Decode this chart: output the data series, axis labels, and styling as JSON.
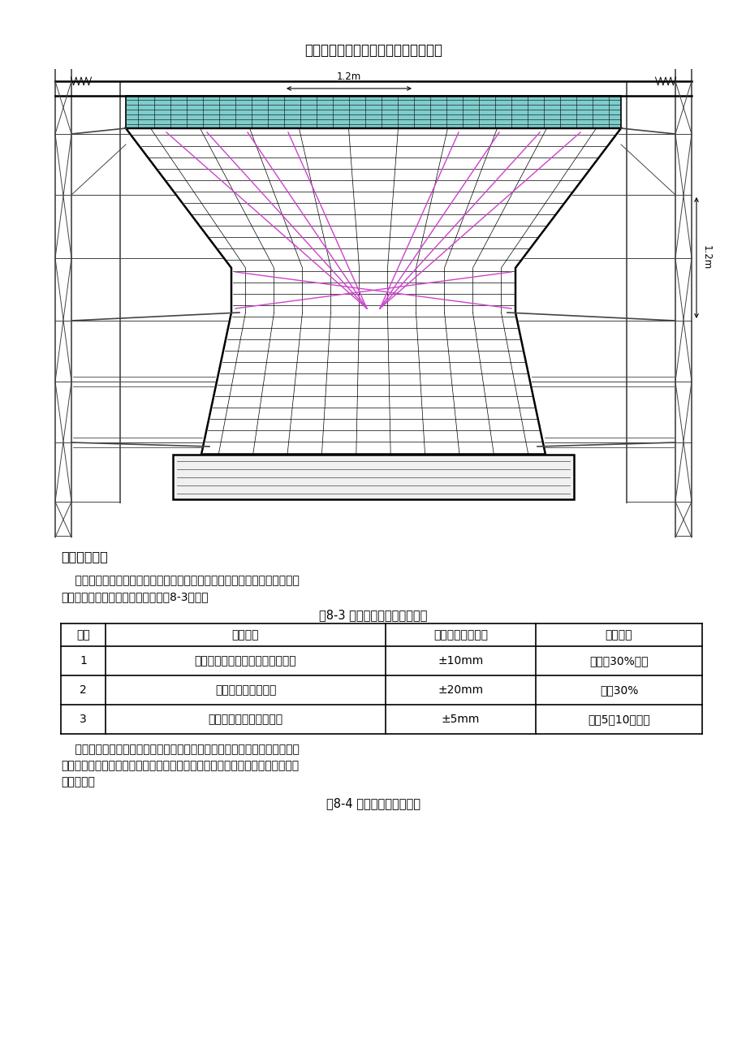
{
  "title": "墩柱施工钢管支架操作平台搭设布置图",
  "dim_top": "1.2m",
  "dim_right": "1.2m",
  "section_heading": "四、钢筋工程",
  "para1_line1": "    钢筋在钢筋棚集中加工制作，现场焊接、绑扎。钢筋绑扎的支架平台采用钢",
  "para1_line2": "管脚手架搭设。钢筋质量应符合下表8-3规定：",
  "table1_title": "表8-3 墩身钢筋安装允许偏差表",
  "table1_headers": [
    "项次",
    "检查项目",
    "规定值或允许偏差",
    "检查方法"
  ],
  "table1_rows": [
    [
      "1",
      "受力钢筋顺长度方向加工后的全长",
      "±10mm",
      "总数的30%抽查"
    ],
    [
      "2",
      "弯起钢筋各部分尺寸",
      "±20mm",
      "抽查30%"
    ],
    [
      "3",
      "箍筋、螺栓筋各部分尺寸",
      "±5mm",
      "检查5～10个间距"
    ]
  ],
  "para2_line1": "    结构主筋接头采用闪光对焊连接，主筋与箍筋之间采用扎丝进行绑扎。绑扎",
  "para2_line2": "或焊接的钢筋网和钢筋骨架不得有变形、松脱现象，钢筋位置的偏差不得超过下",
  "para2_line3": "表规定值。",
  "table2_title": "表8-4 钢筋位置允许偏差表",
  "bg_color": "#ffffff",
  "line_color": "#000000",
  "cyan_color": "#7ecdcc",
  "magenta_color": "#cc44cc",
  "scaffold_color": "#444444",
  "gray_color": "#888888"
}
